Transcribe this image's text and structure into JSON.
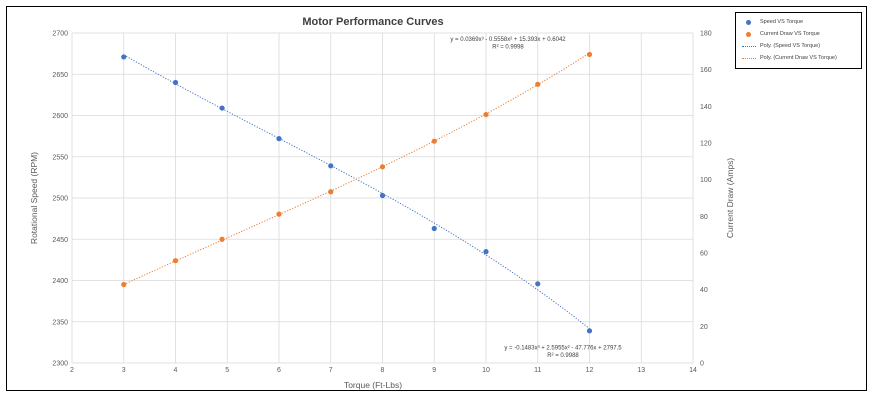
{
  "chart_data": {
    "type": "scatter",
    "title": "Motor Performance Curves",
    "xlabel": "Torque (Ft-Lbs)",
    "ylabel": "Rotational Speed (RPM)",
    "y2label": "Current Draw (Amps)",
    "xlim": [
      2,
      14
    ],
    "ylim": [
      2300,
      2700
    ],
    "y2lim": [
      0,
      180
    ],
    "xticks": [
      "2",
      "3",
      "4",
      "5",
      "6",
      "7",
      "8",
      "9",
      "10",
      "11",
      "12",
      "13",
      "14"
    ],
    "yticks": [
      "2300",
      "2350",
      "2400",
      "2450",
      "2500",
      "2550",
      "2600",
      "2650",
      "2700"
    ],
    "y2ticks": [
      "0",
      "20",
      "40",
      "60",
      "80",
      "100",
      "120",
      "140",
      "160",
      "180"
    ],
    "grid": true,
    "legend_position": "right",
    "series": [
      {
        "name": "Speed VS Torque",
        "axis": "left",
        "color": "#4472C4",
        "x": [
          3,
          4,
          4.9,
          6,
          7,
          8,
          9,
          10,
          11,
          12
        ],
        "y": [
          2671,
          2640,
          2609,
          2572,
          2539,
          2503,
          2463,
          2435,
          2396,
          2339
        ]
      },
      {
        "name": "Current Draw VS Torque",
        "axis": "right",
        "color": "#ED7D31",
        "x": [
          3,
          4,
          4.9,
          6,
          7,
          8,
          9,
          10,
          11,
          12
        ],
        "y": [
          42.8,
          55.8,
          67.5,
          81.2,
          93.4,
          107,
          121,
          135.5,
          152,
          168.3
        ]
      }
    ],
    "trendlines": [
      {
        "name": "Poly. (Speed VS Torque)",
        "of_series": "Speed VS Torque",
        "type": "polynomial",
        "coefficients": [
          -0.1483,
          2.5955,
          -47.776,
          2797.5
        ],
        "equation": "y = -0.1483x³ + 2.5955x² - 47.776x + 2797.5",
        "r_squared": "R² = 0.9988",
        "color": "#4472C4"
      },
      {
        "name": "Poly. (Current Draw VS Torque)",
        "of_series": "Current Draw VS Torque",
        "type": "polynomial",
        "coefficients": [
          0.0369,
          -0.5558,
          15.393,
          0.6042
        ],
        "equation": "y = 0.0369x³ - 0.5558x² + 15.393x + 0.6042",
        "r_squared": "R² = 0.9998",
        "color": "#ED7D31"
      }
    ]
  },
  "legend": {
    "items": [
      {
        "label": "Speed VS Torque",
        "kind": "marker",
        "color": "#4472C4"
      },
      {
        "label": "Current Draw VS Torque",
        "kind": "marker",
        "color": "#ED7D31"
      },
      {
        "label": "Poly. (Speed VS Torque)",
        "kind": "line",
        "color": "#4472C4"
      },
      {
        "label": "Poly. (Current Draw VS Torque)",
        "kind": "line",
        "color": "#ED7D31"
      }
    ]
  }
}
